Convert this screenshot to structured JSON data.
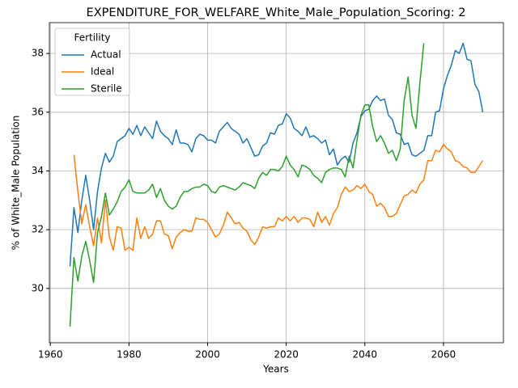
{
  "chart_data": {
    "type": "line",
    "title": "EXPENDITURE_FOR_WELFARE_White_Male_Population_Scoring: 2",
    "xlabel": "Years",
    "ylabel": "% of White_Male Population",
    "legend_title": "Fertility",
    "legend": "upper left",
    "grid": true,
    "xlim": [
      1959.75,
      2075.25
    ],
    "xticks": [
      1960,
      1980,
      2000,
      2020,
      2040,
      2060
    ],
    "ylim": [
      28.15,
      39.05
    ],
    "yticks": [
      30,
      32,
      34,
      36,
      38
    ],
    "x": [
      1965,
      1966,
      1967,
      1968,
      1969,
      1970,
      1971,
      1972,
      1973,
      1974,
      1975,
      1976,
      1977,
      1978,
      1979,
      1980,
      1981,
      1982,
      1983,
      1984,
      1985,
      1986,
      1987,
      1988,
      1989,
      1990,
      1991,
      1992,
      1993,
      1994,
      1995,
      1996,
      1997,
      1998,
      1999,
      2000,
      2001,
      2002,
      2003,
      2004,
      2005,
      2006,
      2007,
      2008,
      2009,
      2010,
      2011,
      2012,
      2013,
      2014,
      2015,
      2016,
      2017,
      2018,
      2019,
      2020,
      2021,
      2022,
      2023,
      2024,
      2025,
      2026,
      2027,
      2028,
      2029,
      2030,
      2031,
      2032,
      2033,
      2034,
      2035,
      2036,
      2037,
      2038,
      2039,
      2040,
      2041,
      2042,
      2043,
      2044,
      2045,
      2046,
      2047,
      2048,
      2049,
      2050,
      2051,
      2052,
      2053,
      2054,
      2055,
      2056,
      2057,
      2058,
      2059,
      2060,
      2061,
      2062,
      2063,
      2064,
      2065,
      2066,
      2067,
      2068,
      2069,
      2070
    ],
    "series": [
      {
        "name": "Actual",
        "color": "#1f77b4",
        "values": [
          30.75,
          32.75,
          31.9,
          33.0,
          33.85,
          33.0,
          32.0,
          33.3,
          34.1,
          34.6,
          34.3,
          34.5,
          35.0,
          35.1,
          35.2,
          35.45,
          35.25,
          35.55,
          35.2,
          35.5,
          35.3,
          35.1,
          35.7,
          35.35,
          35.2,
          35.1,
          34.9,
          35.4,
          34.95,
          34.95,
          34.9,
          34.65,
          35.1,
          35.25,
          35.2,
          35.05,
          35.05,
          34.95,
          35.35,
          35.5,
          35.65,
          35.45,
          35.35,
          35.25,
          34.95,
          35.1,
          34.8,
          34.5,
          34.55,
          34.85,
          34.95,
          35.3,
          35.25,
          35.55,
          35.6,
          35.95,
          35.8,
          35.45,
          35.35,
          35.2,
          35.5,
          35.15,
          35.2,
          35.1,
          34.95,
          35.05,
          34.55,
          34.75,
          34.2,
          34.4,
          34.5,
          34.3,
          34.95,
          35.3,
          35.85,
          36.05,
          36.1,
          36.4,
          36.55,
          36.4,
          36.45,
          35.9,
          35.75,
          35.3,
          35.25,
          34.9,
          34.95,
          34.55,
          34.5,
          34.6,
          34.7,
          35.2,
          35.2,
          36.0,
          36.05,
          36.8,
          37.25,
          37.6,
          38.1,
          38.0,
          38.35,
          37.8,
          37.75,
          36.95,
          36.7,
          36.0
        ]
      },
      {
        "name": "Ideal",
        "color": "#ff7f0e",
        "values": [
          null,
          34.55,
          33.3,
          32.2,
          32.85,
          32.1,
          31.45,
          32.4,
          31.55,
          33.0,
          31.75,
          31.3,
          32.1,
          32.05,
          31.3,
          31.4,
          31.3,
          32.4,
          31.7,
          32.1,
          31.7,
          31.85,
          32.3,
          32.3,
          31.85,
          31.8,
          31.35,
          31.75,
          31.9,
          32.0,
          31.95,
          31.95,
          32.4,
          32.35,
          32.35,
          32.25,
          32.0,
          31.75,
          31.85,
          32.15,
          32.6,
          32.4,
          32.2,
          32.25,
          32.05,
          31.95,
          31.65,
          31.5,
          31.75,
          32.1,
          32.05,
          32.1,
          32.1,
          32.4,
          32.3,
          32.45,
          32.3,
          32.45,
          32.25,
          32.4,
          32.4,
          32.35,
          32.1,
          32.6,
          32.25,
          32.45,
          32.15,
          32.55,
          32.75,
          33.2,
          33.45,
          33.3,
          33.35,
          33.5,
          33.4,
          33.55,
          33.3,
          33.2,
          32.8,
          32.9,
          32.75,
          32.45,
          32.45,
          32.55,
          32.85,
          33.15,
          33.2,
          33.35,
          33.25,
          33.55,
          33.7,
          34.35,
          34.35,
          34.7,
          34.65,
          34.9,
          34.75,
          34.65,
          34.35,
          34.3,
          34.15,
          34.1,
          33.95,
          33.95,
          34.15,
          34.35
        ]
      },
      {
        "name": "Sterile",
        "color": "#2ca02c",
        "values": [
          28.7,
          31.05,
          30.25,
          31.1,
          31.6,
          30.95,
          30.2,
          31.9,
          32.45,
          33.25,
          32.5,
          32.7,
          32.95,
          33.3,
          33.45,
          33.7,
          33.3,
          33.25,
          33.25,
          33.25,
          33.35,
          33.55,
          33.1,
          33.4,
          33.0,
          32.8,
          32.7,
          32.8,
          33.1,
          33.3,
          33.3,
          33.4,
          33.45,
          33.45,
          33.55,
          33.5,
          33.3,
          33.25,
          33.45,
          33.5,
          33.45,
          33.4,
          33.35,
          33.45,
          33.6,
          33.55,
          33.5,
          33.4,
          33.75,
          33.95,
          33.85,
          34.05,
          34.05,
          34.0,
          34.15,
          34.5,
          34.2,
          34.05,
          33.8,
          34.2,
          34.15,
          34.05,
          33.85,
          33.75,
          33.6,
          33.95,
          34.05,
          34.1,
          34.1,
          34.05,
          33.8,
          34.5,
          34.1,
          35.05,
          35.9,
          36.25,
          36.25,
          35.5,
          35.0,
          35.2,
          34.95,
          34.6,
          34.7,
          34.35,
          34.75,
          36.4,
          37.2,
          35.9,
          35.45,
          37.0,
          38.35,
          null,
          null,
          null,
          null,
          null,
          null,
          null,
          null,
          null,
          null,
          null,
          null,
          null,
          null,
          null
        ]
      }
    ]
  }
}
